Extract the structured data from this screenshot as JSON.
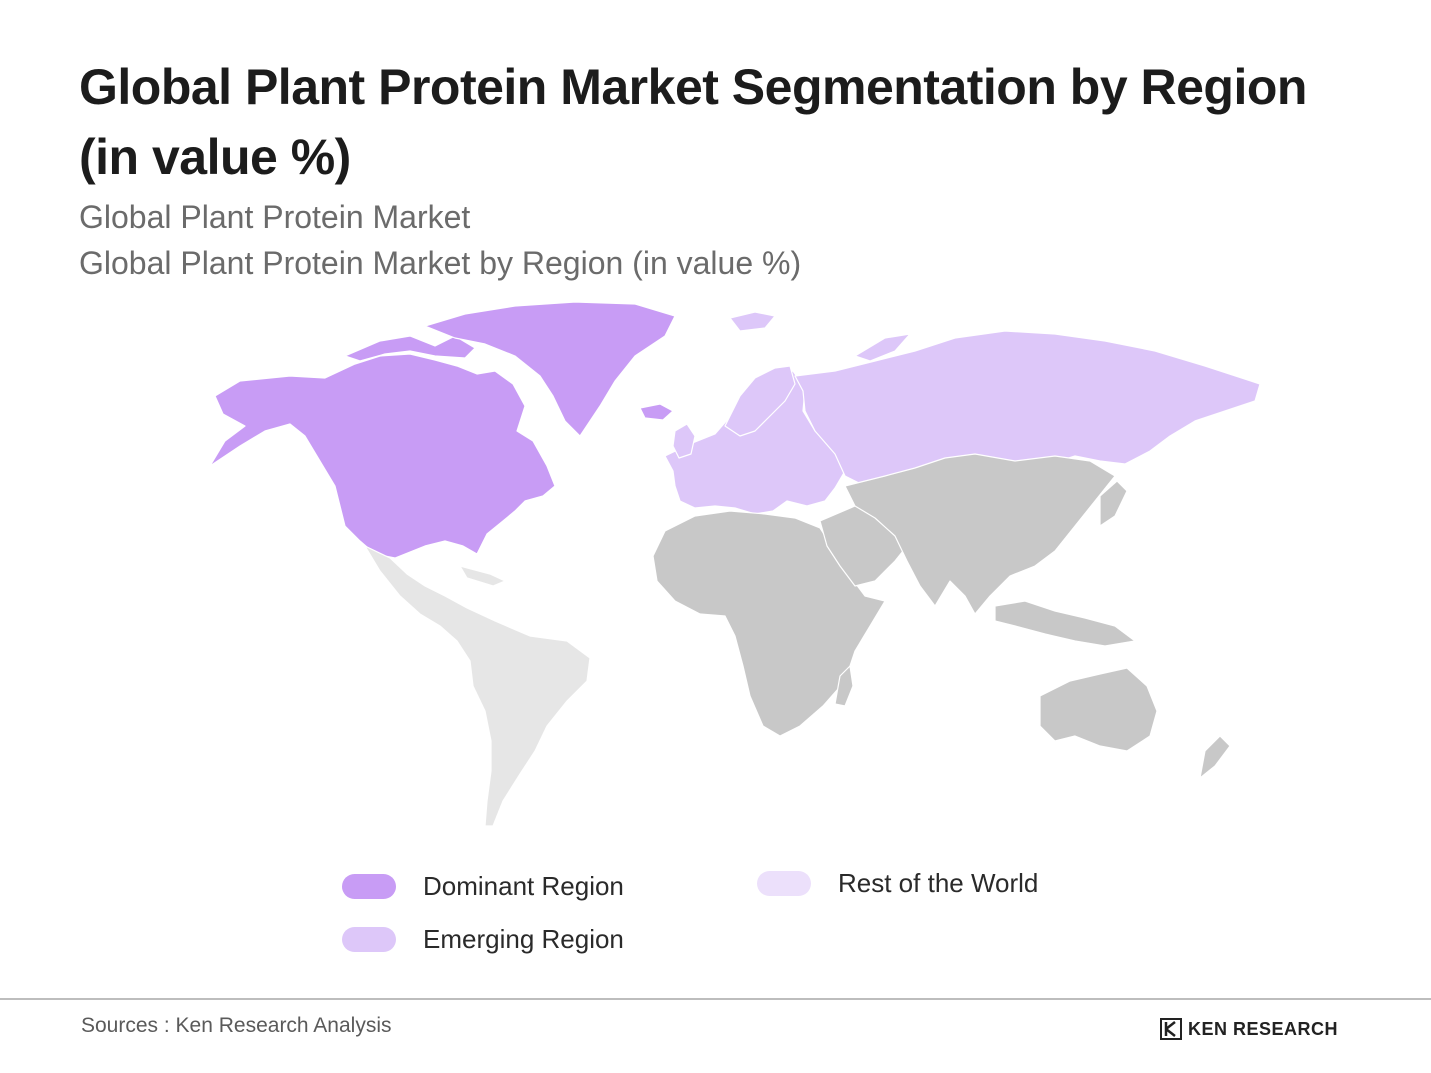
{
  "header": {
    "title": "Global Plant Protein Market Segmentation by Region (in value %)",
    "subtitle_1": "Global Plant Protein Market",
    "subtitle_2": "Global Plant Protein Market by Region (in value %)"
  },
  "legend": {
    "items": [
      {
        "label": "Dominant Region",
        "color": "#c89cf5"
      },
      {
        "label": "Emerging Region",
        "color": "#ddc7f9"
      },
      {
        "label": "Rest of the World",
        "color": "#ece0fb"
      }
    ]
  },
  "map": {
    "regions": [
      {
        "name": "North America",
        "category": "Dominant Region",
        "color": "#c89cf5"
      },
      {
        "name": "Greenland",
        "category": "Dominant Region",
        "color": "#c89cf5"
      },
      {
        "name": "Europe",
        "category": "Emerging Region",
        "color": "#ddc7f9"
      },
      {
        "name": "Russia",
        "category": "Emerging Region",
        "color": "#ddc7f9"
      },
      {
        "name": "Latin America",
        "category": "Other",
        "color": "#e6e6e6"
      },
      {
        "name": "Africa",
        "category": "Other",
        "color": "#c8c8c8"
      },
      {
        "name": "Asia",
        "category": "Other",
        "color": "#c8c8c8"
      },
      {
        "name": "Oceania",
        "category": "Other",
        "color": "#c8c8c8"
      }
    ]
  },
  "footer": {
    "source": "Sources : Ken Research Analysis",
    "logo_text": "KEN RESEARCH"
  }
}
